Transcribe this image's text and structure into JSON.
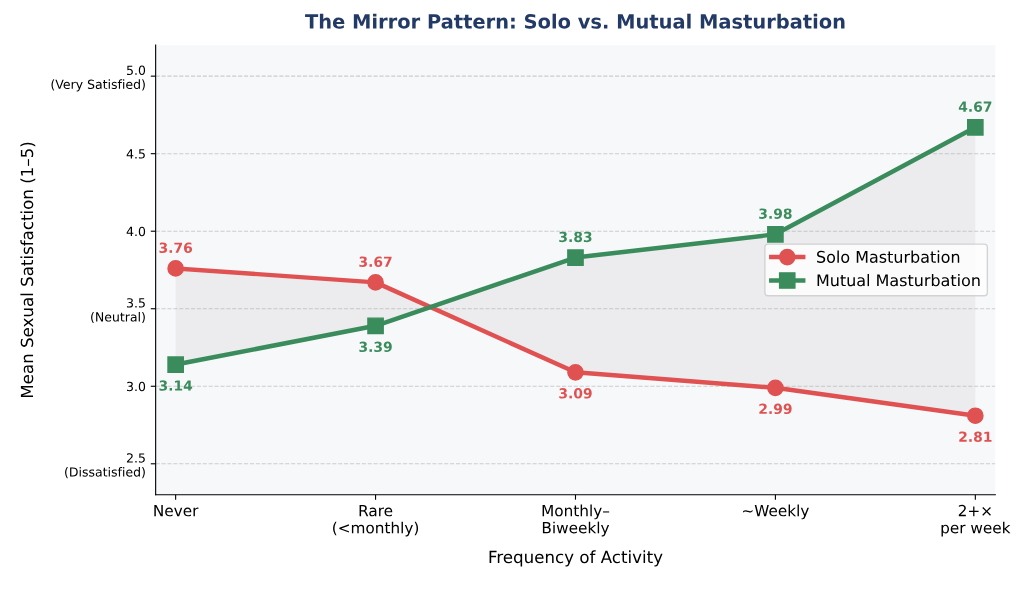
{
  "chart_data": {
    "type": "line",
    "title": "The Mirror Pattern: Solo vs. Mutual Masturbation",
    "xlabel": "Frequency of Activity",
    "ylabel": "Mean Sexual Satisfaction (1–5)",
    "categories": [
      "Never",
      "Rare\n(<monthly)",
      "Monthly–\nBiweekly",
      "~Weekly",
      "2+×\nper week"
    ],
    "series": [
      {
        "name": "Solo Masturbation",
        "color": "#e05252",
        "marker": "circle",
        "values": [
          3.76,
          3.67,
          3.09,
          2.99,
          2.81
        ]
      },
      {
        "name": "Mutual Masturbation",
        "color": "#3a8c5c",
        "marker": "square",
        "values": [
          3.14,
          3.39,
          3.83,
          3.98,
          4.67
        ],
        "lower": [
          3.76,
          3.67,
          3.09,
          2.99,
          2.81
        ],
        "upper": [
          3.14,
          3.39,
          3.83,
          3.98,
          4.67
        ]
      }
    ],
    "ylim": [
      2.3,
      5.2
    ],
    "yticks": [
      {
        "value": 2.5,
        "label": "2.5\n(Dissatisfied)"
      },
      {
        "value": 3.0,
        "label": "3.0"
      },
      {
        "value": 3.5,
        "label": "3.5\n(Neutral)"
      },
      {
        "value": 4.0,
        "label": "4.0"
      },
      4.5,
      {
        "value": 5.0,
        "label": "5.0\n(Very Satisfied)"
      }
    ],
    "grid": "y",
    "legend": "center right",
    "data_labels": true,
    "line_style": "solid"
  }
}
